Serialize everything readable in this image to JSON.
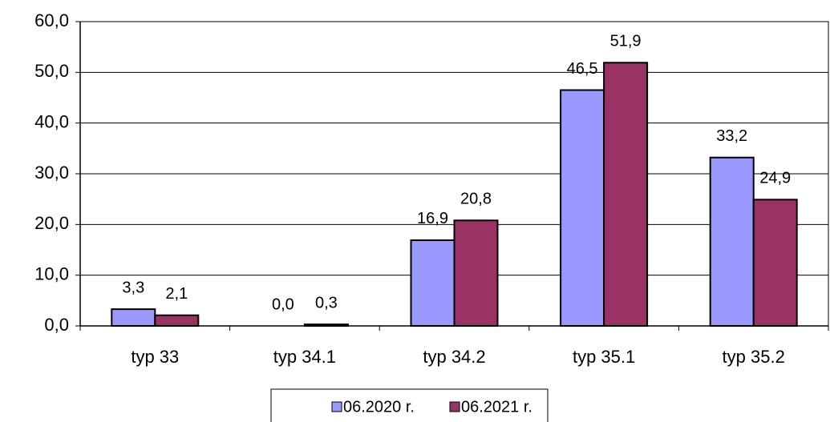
{
  "chart_data": {
    "type": "bar",
    "categories": [
      "typ 33",
      "typ 34.1",
      "typ 34.2",
      "typ 35.1",
      "typ 35.2"
    ],
    "series": [
      {
        "name": "06.2020 r.",
        "color": "#9999ff",
        "values": [
          3.3,
          0.0,
          16.9,
          46.5,
          33.2
        ],
        "value_labels": [
          "3,3",
          "0,0",
          "16,9",
          "46,5",
          "33,2"
        ]
      },
      {
        "name": "06.2021 r.",
        "color": "#993366",
        "values": [
          2.1,
          0.3,
          20.8,
          51.9,
          24.9
        ],
        "value_labels": [
          "2,1",
          "0,3",
          "20,8",
          "51,9",
          "24,9"
        ]
      }
    ],
    "ylim": [
      0,
      60
    ],
    "yticks": [
      {
        "value": 0,
        "label": "0,0"
      },
      {
        "value": 10,
        "label": "10,0"
      },
      {
        "value": 20,
        "label": "20,0"
      },
      {
        "value": 30,
        "label": "30,0"
      },
      {
        "value": 40,
        "label": "40,0"
      },
      {
        "value": 50,
        "label": "50,0"
      },
      {
        "value": 60,
        "label": "60,0"
      }
    ],
    "grid": true,
    "legend": "bottom"
  }
}
